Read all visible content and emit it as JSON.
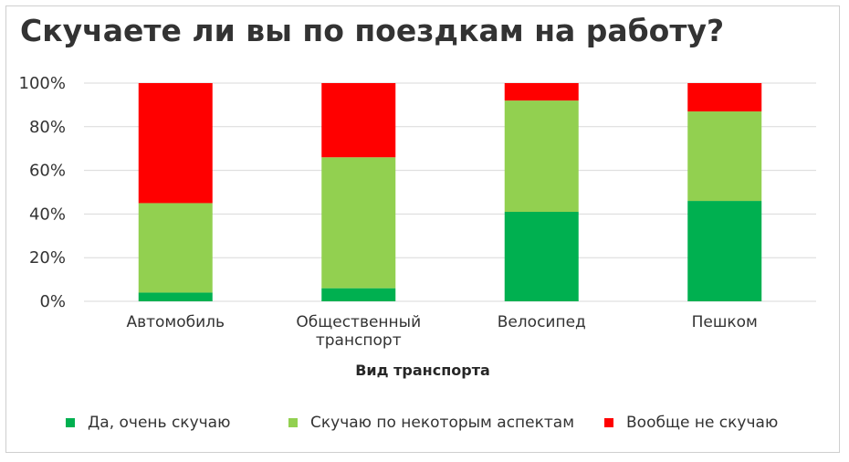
{
  "chart_data": {
    "type": "bar",
    "stacked": true,
    "title": "Скучаете ли вы по поездкам на работу?",
    "xlabel": "Вид транспорта",
    "ylabel": "",
    "categories": [
      [
        "Автомобиль"
      ],
      [
        "Общественный",
        "транспорт"
      ],
      [
        "Велосипед"
      ],
      [
        "Пешком"
      ]
    ],
    "series": [
      {
        "name": "Да, очень скучаю",
        "color": "#00b050",
        "values": [
          4,
          6,
          41,
          46
        ]
      },
      {
        "name": "Скучаю по некоторым аспектам",
        "color": "#92d050",
        "values": [
          41,
          60,
          51,
          41
        ]
      },
      {
        "name": "Вообще не скучаю",
        "color": "#ff0000",
        "values": [
          55,
          34,
          8,
          13
        ]
      }
    ],
    "ylim": [
      0,
      100
    ],
    "yticks": [
      0,
      20,
      40,
      60,
      80,
      100
    ],
    "ytick_labels": [
      "0%",
      "20%",
      "40%",
      "60%",
      "80%",
      "100%"
    ],
    "grid": true,
    "legend_position": "bottom"
  }
}
